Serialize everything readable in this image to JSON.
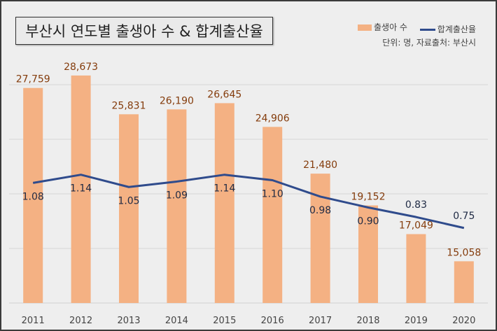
{
  "chart_data": {
    "type": "bar+line",
    "title": "부산시 연도별 출생아 수 & 합계출산율",
    "note": "단위: 명, 자료출처: 부산시",
    "categories": [
      "2011",
      "2012",
      "2013",
      "2014",
      "2015",
      "2016",
      "2017",
      "2018",
      "2019",
      "2020"
    ],
    "series": [
      {
        "name": "출생아 수",
        "type": "bar",
        "axis": "primary",
        "color": "#f4b183",
        "values": [
          27759,
          28673,
          25831,
          26190,
          26645,
          24906,
          21480,
          19152,
          17049,
          15058
        ],
        "labels": [
          "27,759",
          "28,673",
          "25,831",
          "26,190",
          "26,645",
          "24,906",
          "21,480",
          "19,152",
          "17,049",
          "15,058"
        ]
      },
      {
        "name": "합계출산율",
        "type": "line",
        "axis": "secondary",
        "color": "#2f4b8c",
        "values": [
          1.08,
          1.14,
          1.05,
          1.09,
          1.14,
          1.1,
          0.98,
          0.9,
          0.83,
          0.75
        ],
        "labels": [
          "1.08",
          "1.14",
          "1.05",
          "1.09",
          "1.14",
          "1.10",
          "0.98",
          "0.90",
          "0.83",
          "0.75"
        ]
      }
    ],
    "ylim": [
      12000,
      32000
    ],
    "y2lim": [
      0.2,
      2.2
    ],
    "ygrid_step": 4000,
    "grid": true,
    "axis_tick_labels_visible": false,
    "legend_position": "top-right",
    "bar_label_color": "#843c0c",
    "line_label_color": "#1f2a44"
  }
}
